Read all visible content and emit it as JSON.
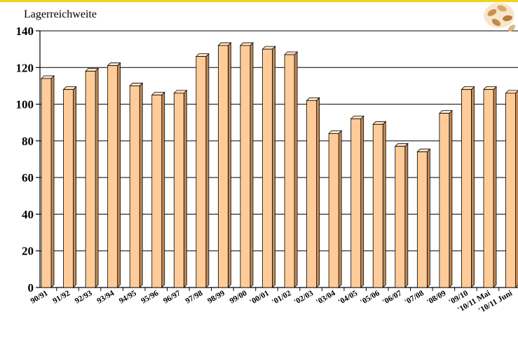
{
  "chart_data": {
    "type": "bar",
    "title": "",
    "ylabel": "Lagerreichweite",
    "xlabel": "",
    "ylim": [
      0,
      140
    ],
    "yticks": [
      0,
      20,
      40,
      60,
      80,
      100,
      120,
      140
    ],
    "grid": true,
    "categories": [
      "90/91",
      "91/92",
      "92/93",
      "93/94",
      "94/95",
      "95/96",
      "96/97",
      "97/98",
      "98/99",
      "99/00",
      "'00/01",
      "'01/02",
      "'02/03",
      "'03/04",
      "'04/05",
      "'05/06",
      "'06/07",
      "'07/08",
      "'08/09",
      "'09/10",
      "'10/11 Mai",
      "'10/11 Juni"
    ],
    "values": [
      114,
      108,
      118,
      121,
      110,
      105,
      106,
      126,
      132,
      132,
      130,
      127,
      102,
      84,
      92,
      89,
      77,
      74,
      95,
      108,
      108,
      106
    ],
    "colors": {
      "bar_front": "#ffcc99",
      "bar_side": "#c48a57",
      "bar_top": "#ffe2c4",
      "outline": "#000000",
      "accent": "#f2d21b"
    }
  },
  "logo": {
    "icon": "grain-icon"
  }
}
